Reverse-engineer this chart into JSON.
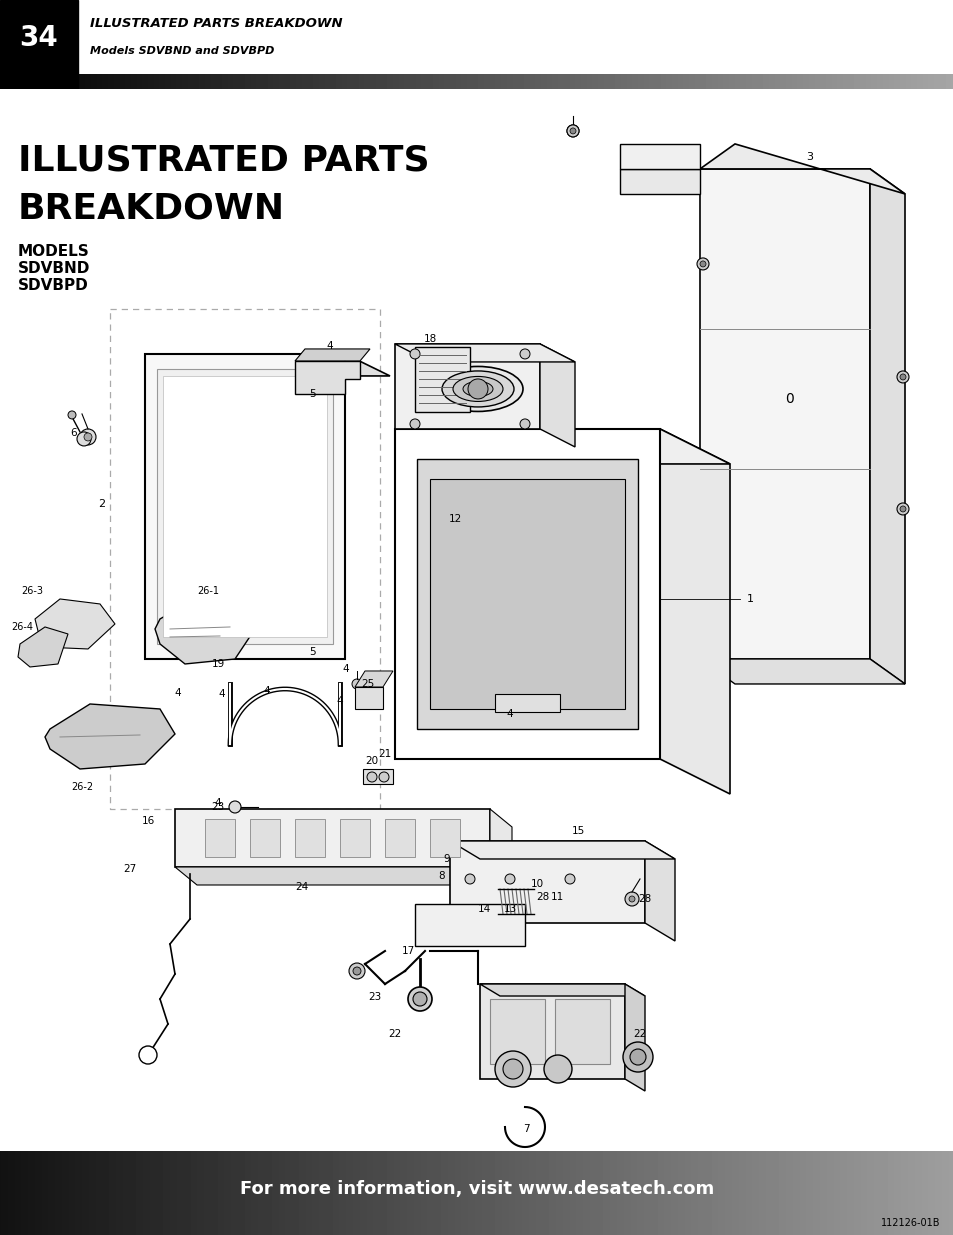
{
  "page_number": "34",
  "header_title": "ILLUSTRATED PARTS BREAKDOWN",
  "header_subtitle": "Models SDVBND and SDVBPD",
  "main_title_line1": "ILLUSTRATED PARTS",
  "main_title_line2": "BREAKDOWN",
  "footer_text": "For more information, visit www.desatech.com",
  "footer_code": "112126-01B",
  "bg_color": "#ffffff",
  "header_bg": "#000000",
  "footer_bg_left": "#111111",
  "footer_bg_right": "#999999",
  "main_title_color": "#000000"
}
